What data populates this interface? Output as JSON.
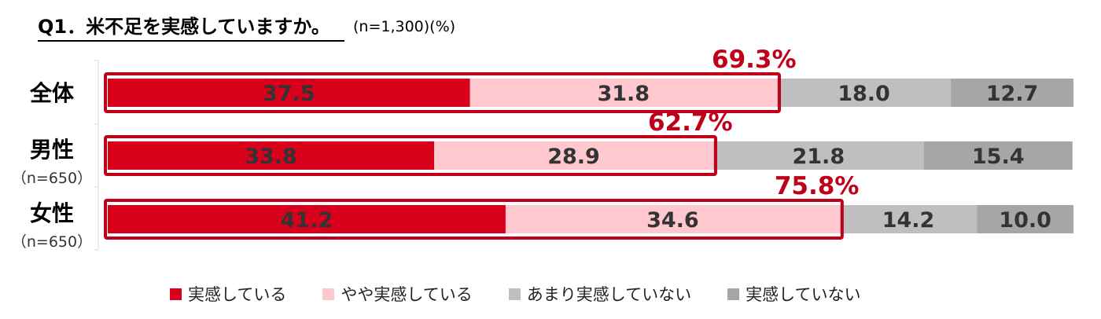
{
  "title": "Q1．米不足を実感していますか。",
  "sample_note": "(n=1,300)(%)",
  "colors": {
    "series": [
      "#d9001b",
      "#ffc7ce",
      "#bfbfbf",
      "#a6a6a6"
    ],
    "highlight": "#c00018",
    "dark_label": "#333333"
  },
  "chart_data": {
    "type": "bar",
    "orientation": "horizontal",
    "stacked": true,
    "xlim": [
      0,
      100
    ],
    "categories": [
      {
        "label": "全体",
        "sub": ""
      },
      {
        "label": "男性",
        "sub": "（n=650）"
      },
      {
        "label": "女性",
        "sub": "（n=650）"
      }
    ],
    "series": [
      {
        "name": "実感している",
        "values": [
          37.5,
          33.8,
          41.2
        ]
      },
      {
        "name": "やや実感している",
        "values": [
          31.8,
          28.9,
          34.6
        ]
      },
      {
        "name": "あまり実感していない",
        "values": [
          18.0,
          21.8,
          14.2
        ]
      },
      {
        "name": "実感していない",
        "values": [
          12.7,
          15.4,
          10.0
        ]
      }
    ],
    "value_labels": [
      [
        "37.5",
        "31.8",
        "18.0",
        "12.7"
      ],
      [
        "33.8",
        "28.9",
        "21.8",
        "15.4"
      ],
      [
        "41.2",
        "34.6",
        "14.2",
        "10.0"
      ]
    ],
    "highlight_totals": [
      "69.3%",
      "62.7%",
      "75.8%"
    ],
    "legend_position": "bottom"
  }
}
